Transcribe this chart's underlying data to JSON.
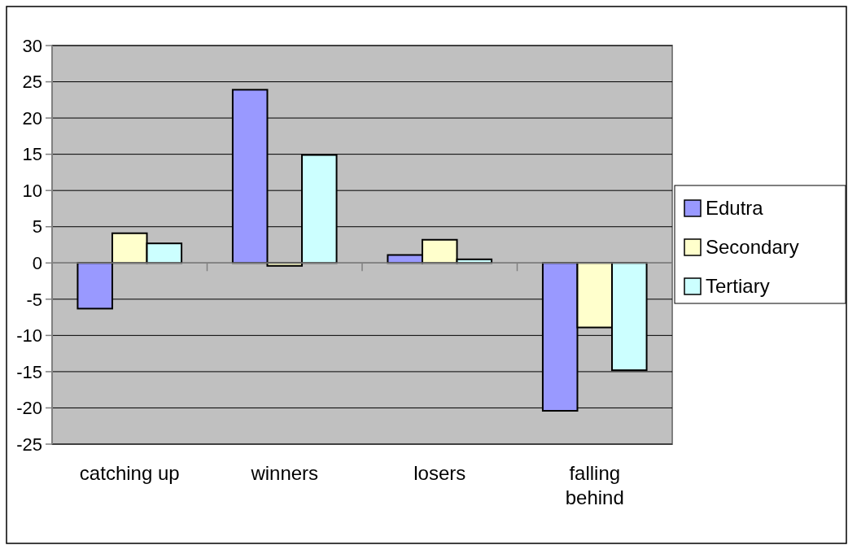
{
  "chart_data": {
    "type": "bar",
    "categories": [
      "catching up",
      "winners",
      "losers",
      "falling\nbehind"
    ],
    "series": [
      {
        "name": "Edutra",
        "color": "#9999ff",
        "values": [
          -6.3,
          23.9,
          1.1,
          -20.4
        ]
      },
      {
        "name": "Secondary",
        "color": "#ffffcc",
        "values": [
          4.1,
          -0.4,
          3.2,
          -8.9
        ]
      },
      {
        "name": "Tertiary",
        "color": "#ccffff",
        "values": [
          2.7,
          14.9,
          0.5,
          -14.8
        ]
      }
    ],
    "ylim": [
      -25,
      30
    ],
    "yticks": [
      -25,
      -20,
      -15,
      -10,
      -5,
      0,
      5,
      10,
      15,
      20,
      25,
      30
    ],
    "grid": "y",
    "legend": "right"
  }
}
